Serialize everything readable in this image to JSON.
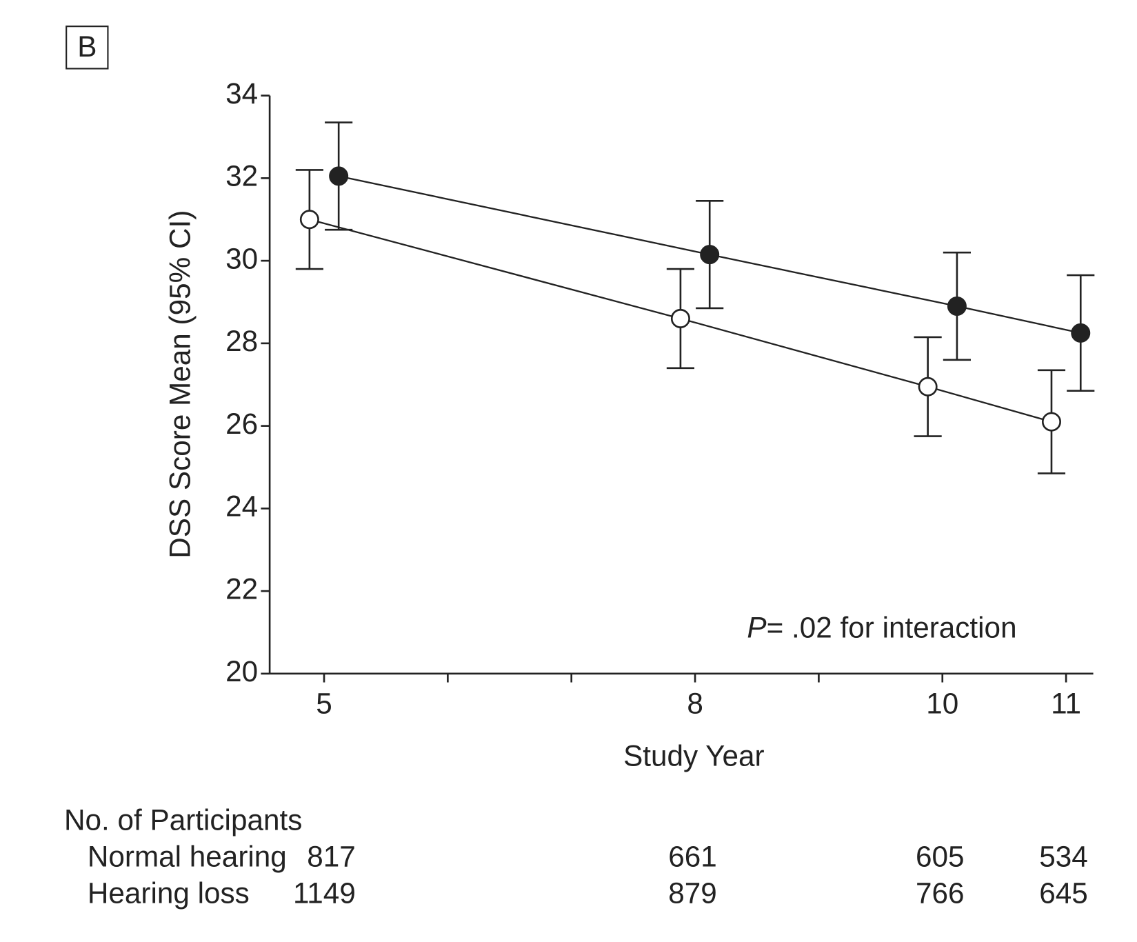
{
  "chart_data": {
    "type": "line",
    "panel_label": "B",
    "x_label": "Study Year",
    "y_label": "DSS Score Mean (95% CI)",
    "annotation": {
      "italic": "P",
      "text": "= .02 for interaction"
    },
    "x": [
      5,
      8,
      10,
      11
    ],
    "xlim": [
      4.56,
      11.22
    ],
    "xticks": [
      5,
      8,
      10,
      11
    ],
    "xminor_ticks": [
      6,
      7,
      9
    ],
    "ylim": [
      20,
      34
    ],
    "yticks": [
      20,
      22,
      24,
      26,
      28,
      30,
      32,
      34
    ],
    "series": [
      {
        "marker": "open",
        "color": "#222222",
        "values": [
          31.0,
          28.6,
          26.95,
          26.1
        ],
        "errors": [
          1.2,
          1.2,
          1.2,
          1.25
        ]
      },
      {
        "marker": "filled",
        "color": "#222222",
        "values": [
          32.05,
          30.15,
          28.9,
          28.25
        ],
        "errors": [
          1.3,
          1.3,
          1.3,
          1.4
        ]
      }
    ],
    "participants": {
      "title": "No. of Participants",
      "rows": [
        {
          "label": "Normal hearing",
          "values": [
            817,
            661,
            605,
            534
          ]
        },
        {
          "label": "Hearing loss",
          "values": [
            1149,
            879,
            766,
            645
          ]
        }
      ]
    }
  }
}
